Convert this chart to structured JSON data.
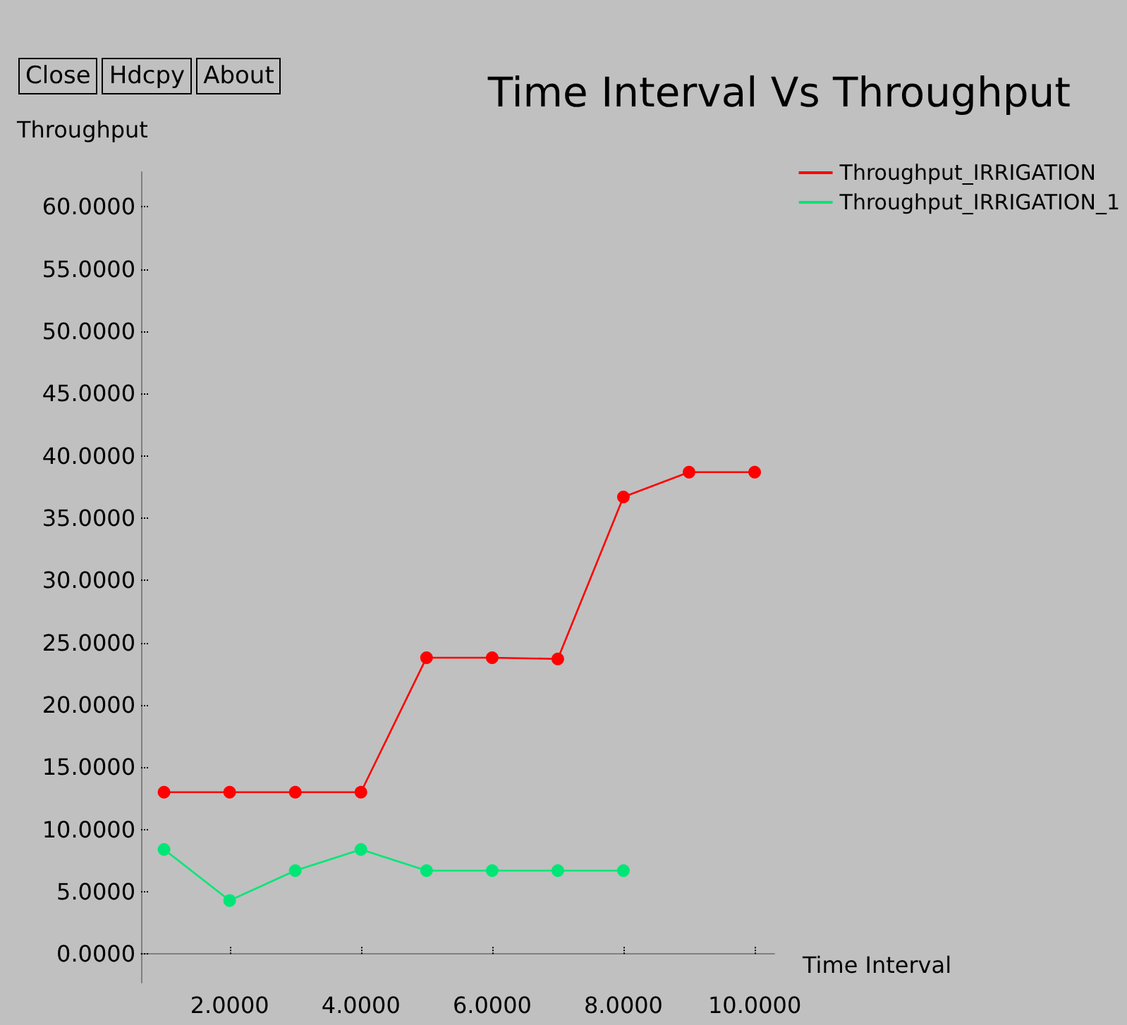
{
  "chart_data": {
    "type": "line",
    "title": "Time Interval Vs Throughput",
    "xlabel": "Time Interval",
    "ylabel": "Throughput",
    "annotations": [
      "Close",
      "Hdcpy",
      "About"
    ],
    "series": [
      {
        "name": "Throughput_IRRIGATION",
        "color": "#ff0000",
        "x": [
          1,
          2,
          3,
          4,
          5,
          6,
          7,
          8,
          9,
          10
        ],
        "values": [
          13,
          13,
          13,
          13,
          23.8,
          23.8,
          23.7,
          36.7,
          38.7,
          38.7
        ]
      },
      {
        "name": "Throughput_IRRIGATION_1",
        "color": "#00e676",
        "x": [
          1,
          2,
          3,
          4,
          5,
          6,
          7,
          8
        ],
        "values": [
          8.4,
          4.3,
          6.7,
          8.4,
          6.7,
          6.7,
          6.7,
          6.7
        ]
      }
    ],
    "xlim": [
      0.65,
      10.3
    ],
    "ylim": [
      -2.3,
      62.8
    ],
    "xticks": [
      {
        "value": 2,
        "label": "2.0000"
      },
      {
        "value": 4,
        "label": "4.0000"
      },
      {
        "value": 6,
        "label": "6.0000"
      },
      {
        "value": 8,
        "label": "8.0000"
      },
      {
        "value": 10,
        "label": "10.0000"
      }
    ],
    "yticks": [
      {
        "value": 0,
        "label": "0.0000"
      },
      {
        "value": 5,
        "label": "5.0000"
      },
      {
        "value": 10,
        "label": "10.0000"
      },
      {
        "value": 15,
        "label": "15.0000"
      },
      {
        "value": 20,
        "label": "20.0000"
      },
      {
        "value": 25,
        "label": "25.0000"
      },
      {
        "value": 30,
        "label": "30.0000"
      },
      {
        "value": 35,
        "label": "35.0000"
      },
      {
        "value": 40,
        "label": "40.0000"
      },
      {
        "value": 45,
        "label": "45.0000"
      },
      {
        "value": 50,
        "label": "50.0000"
      },
      {
        "value": 55,
        "label": "55.0000"
      },
      {
        "value": 60,
        "label": "60.0000"
      }
    ],
    "grid": false,
    "legend": "top right",
    "marker": "circle",
    "line_style": "solid"
  }
}
